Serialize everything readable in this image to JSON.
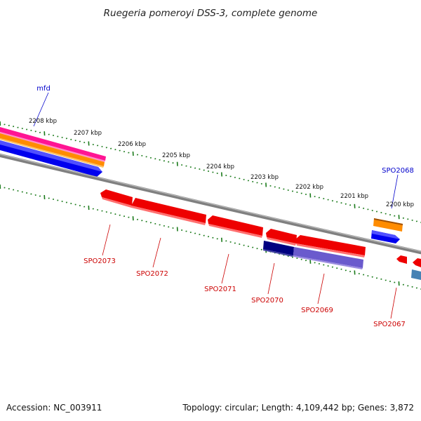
{
  "title": "Ruegeria pomeroyi DSS-3, complete genome",
  "footer": {
    "accession": "Accession: NC_003911",
    "summary": "Topology: circular; Length: 4,109,442 bp; Genes: 3,872"
  },
  "colors": {
    "backbone": "#808080",
    "tick": "#1a7a1a",
    "forward_gene": "#0000ee",
    "reverse_gene": "#ee0000",
    "reverse_dark": "#000080",
    "reverse_light": "#6a5acd",
    "orange": "#ff8c00",
    "pink": "#ff1493",
    "steelblue": "#4682b4"
  },
  "ticks": [
    {
      "label": "2208 kbp"
    },
    {
      "label": "2207 kbp"
    },
    {
      "label": "2206 kbp"
    },
    {
      "label": "2205 kbp"
    },
    {
      "label": "2204 kbp"
    },
    {
      "label": "2203 kbp"
    },
    {
      "label": "2202 kbp"
    },
    {
      "label": "2201 kbp"
    },
    {
      "label": "2200 kbp"
    }
  ],
  "gene_labels": [
    {
      "id": "mfd",
      "text": "mfd"
    },
    {
      "id": "spo2068",
      "text": "SPO2068"
    },
    {
      "id": "spo2073",
      "text": "SPO2073"
    },
    {
      "id": "spo2072",
      "text": "SPO2072"
    },
    {
      "id": "spo2071",
      "text": "SPO2071"
    },
    {
      "id": "spo2070",
      "text": "SPO2070"
    },
    {
      "id": "spo2069",
      "text": "SPO2069"
    },
    {
      "id": "spo2067",
      "text": "SPO2067"
    }
  ]
}
